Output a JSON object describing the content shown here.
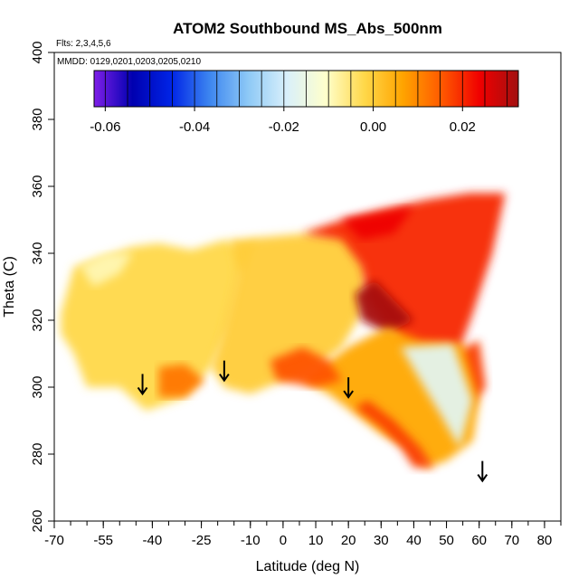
{
  "chart_data": {
    "type": "heatmap",
    "title": "ATOM2 Southbound MS_Abs_500nm",
    "flights_note": "Flts: 2,3,4,5,6",
    "dates_note": "MMDD: 0129,0201,0203,0205,0210",
    "xlabel": "Latitude (deg N)",
    "ylabel": "Theta (C)",
    "xlim": [
      -70,
      85
    ],
    "ylim": [
      260,
      400
    ],
    "x_ticks": [
      -70,
      -55,
      -40,
      -25,
      -10,
      0,
      10,
      20,
      30,
      40,
      50,
      60,
      70,
      80
    ],
    "y_ticks": [
      260,
      280,
      300,
      320,
      340,
      360,
      380,
      400
    ],
    "colorbar": {
      "range": [
        -0.0625,
        0.0325
      ],
      "ticks": [
        -0.06,
        -0.04,
        -0.02,
        0.0,
        0.02
      ],
      "tick_labels": [
        "-0.06",
        "-0.04",
        "-0.02",
        "0.00",
        "0.02"
      ],
      "colors": [
        "#7f1fe8",
        "#0000b0",
        "#0024e6",
        "#3d86f0",
        "#8ec9f6",
        "#d9f0fb",
        "#ffffcc",
        "#ffd84a",
        "#ffa400",
        "#ff5a00",
        "#f00000",
        "#a21010"
      ]
    },
    "data_regions": [
      {
        "name": "southern-domain",
        "value": -0.002,
        "outline": [
          [
            -68,
            322
          ],
          [
            -64,
            336
          ],
          [
            -55,
            339
          ],
          [
            -46,
            342
          ],
          [
            -38,
            343
          ],
          [
            -28,
            341
          ],
          [
            -18,
            344
          ],
          [
            -12,
            342
          ],
          [
            -8,
            344
          ],
          [
            -12,
            334
          ],
          [
            -16,
            318
          ],
          [
            -22,
            306
          ],
          [
            -30,
            297
          ],
          [
            -42,
            293
          ],
          [
            -50,
            300
          ],
          [
            -60,
            300
          ],
          [
            -64,
            310
          ],
          [
            -68,
            316
          ]
        ]
      },
      {
        "name": "central-domain",
        "value": 0.0,
        "outline": [
          [
            -16,
            344
          ],
          [
            -4,
            345
          ],
          [
            8,
            346
          ],
          [
            20,
            346
          ],
          [
            26,
            336
          ],
          [
            24,
            322
          ],
          [
            18,
            312
          ],
          [
            10,
            306
          ],
          [
            0,
            302
          ],
          [
            -10,
            298
          ],
          [
            -18,
            300
          ],
          [
            -22,
            306
          ],
          [
            -18,
            318
          ],
          [
            -14,
            334
          ]
        ]
      },
      {
        "name": "northern-plume",
        "value": 0.02,
        "outline": [
          [
            6,
            346
          ],
          [
            18,
            350
          ],
          [
            30,
            353
          ],
          [
            44,
            356
          ],
          [
            57,
            358
          ],
          [
            68,
            358
          ],
          [
            64,
            340
          ],
          [
            58,
            322
          ],
          [
            52,
            306
          ],
          [
            48,
            300
          ],
          [
            40,
            308
          ],
          [
            32,
            318
          ],
          [
            26,
            326
          ],
          [
            24,
            336
          ],
          [
            18,
            344
          ]
        ]
      },
      {
        "name": "upper-plume-core",
        "value": 0.024,
        "outline": [
          [
            18,
            350
          ],
          [
            30,
            352
          ],
          [
            40,
            354
          ],
          [
            34,
            346
          ],
          [
            24,
            344
          ]
        ]
      },
      {
        "name": "plume-core",
        "value": 0.032,
        "outline": [
          [
            22,
            328
          ],
          [
            28,
            332
          ],
          [
            34,
            326
          ],
          [
            40,
            320
          ],
          [
            32,
            316
          ],
          [
            24,
            320
          ]
        ]
      },
      {
        "name": "low-lat-wedge",
        "value": 0.018,
        "outline": [
          [
            42,
            312
          ],
          [
            52,
            310
          ],
          [
            60,
            314
          ],
          [
            62,
            300
          ],
          [
            56,
            292
          ],
          [
            48,
            290
          ]
        ]
      },
      {
        "name": "lower-northern",
        "value": 0.006,
        "outline": [
          [
            20,
            312
          ],
          [
            32,
            318
          ],
          [
            42,
            314
          ],
          [
            55,
            313
          ],
          [
            60,
            296
          ],
          [
            58,
            284
          ],
          [
            50,
            278
          ],
          [
            44,
            276
          ],
          [
            38,
            282
          ],
          [
            30,
            286
          ],
          [
            22,
            292
          ],
          [
            14,
            298
          ],
          [
            6,
            302
          ]
        ]
      },
      {
        "name": "blue-triangle",
        "value": -0.017,
        "outline": [
          [
            36,
            312
          ],
          [
            52,
            313
          ],
          [
            58,
            296
          ],
          [
            54,
            282
          ],
          [
            48,
            292
          ],
          [
            42,
            302
          ]
        ]
      },
      {
        "name": "lower-plume-edge",
        "value": 0.018,
        "outline": [
          [
            22,
            294
          ],
          [
            30,
            288
          ],
          [
            36,
            282
          ],
          [
            40,
            276
          ],
          [
            46,
            276
          ],
          [
            42,
            282
          ],
          [
            34,
            290
          ],
          [
            26,
            296
          ]
        ]
      },
      {
        "name": "southern-orange-patch",
        "value": 0.012,
        "outline": [
          [
            -38,
            306
          ],
          [
            -30,
            307
          ],
          [
            -24,
            302
          ],
          [
            -30,
            297
          ],
          [
            -38,
            297
          ]
        ]
      },
      {
        "name": "mid-orange-patch",
        "value": 0.016,
        "outline": [
          [
            -4,
            308
          ],
          [
            6,
            312
          ],
          [
            14,
            308
          ],
          [
            18,
            302
          ],
          [
            10,
            300
          ],
          [
            -2,
            302
          ]
        ]
      },
      {
        "name": "southern-blue-patch",
        "value": -0.009,
        "outline": [
          [
            -62,
            336
          ],
          [
            -54,
            340
          ],
          [
            -46,
            340
          ],
          [
            -50,
            334
          ],
          [
            -58,
            330
          ]
        ]
      }
    ],
    "flight_markers": [
      {
        "latitude": -43,
        "theta": 298
      },
      {
        "latitude": -18,
        "theta": 302
      },
      {
        "latitude": 20,
        "theta": 297
      },
      {
        "latitude": 61,
        "theta": 272
      }
    ]
  }
}
